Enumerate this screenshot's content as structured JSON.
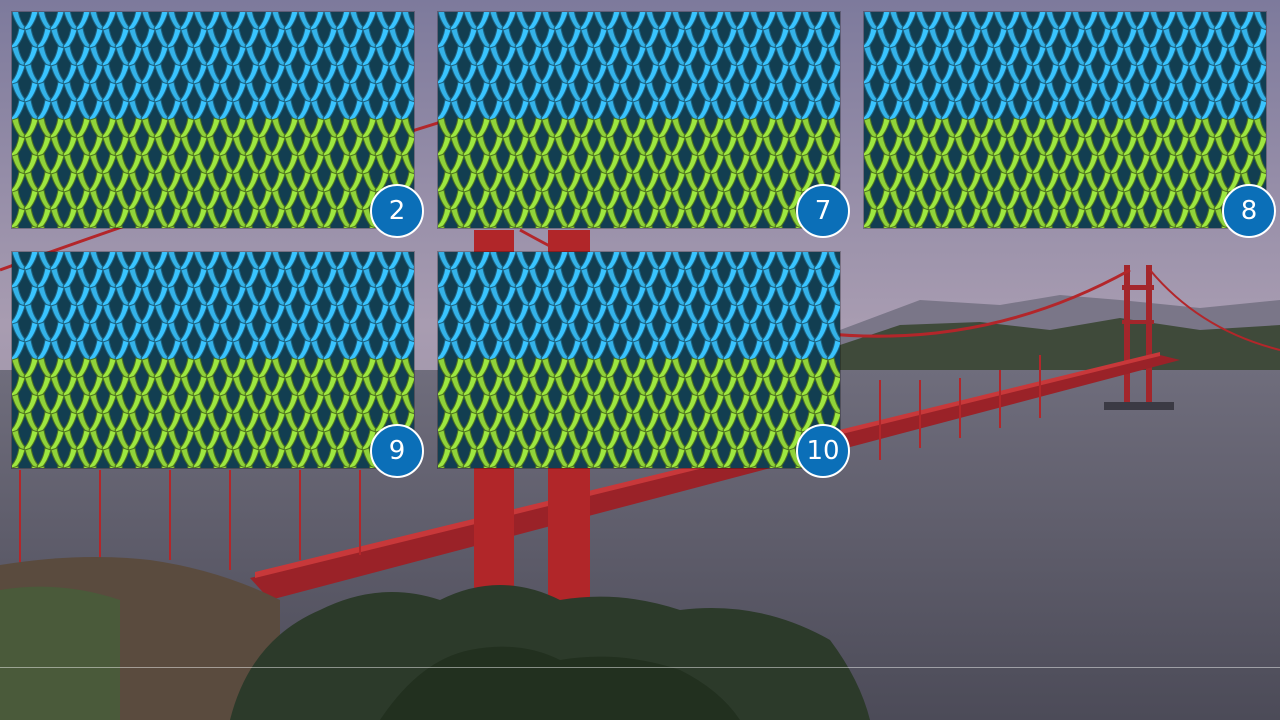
{
  "switcher": {
    "windows": [
      {
        "number": "2",
        "thumbnail": "knitted-yarn-texture"
      },
      {
        "number": "7",
        "thumbnail": "knitted-yarn-texture"
      },
      {
        "number": "8",
        "thumbnail": "knitted-yarn-texture"
      },
      {
        "number": "9",
        "thumbnail": "knitted-yarn-texture"
      },
      {
        "number": "10",
        "thumbnail": "knitted-yarn-texture"
      }
    ],
    "badge_color": "#0b6fb8",
    "yarn_colors": {
      "top": "#34b2e8",
      "bottom": "#8fd23a"
    }
  },
  "wallpaper": {
    "subject": "bridge-over-bay",
    "colors": {
      "sky": "#8c87a0",
      "water": "#5c5d6c",
      "bridge": "#b3262a"
    }
  }
}
